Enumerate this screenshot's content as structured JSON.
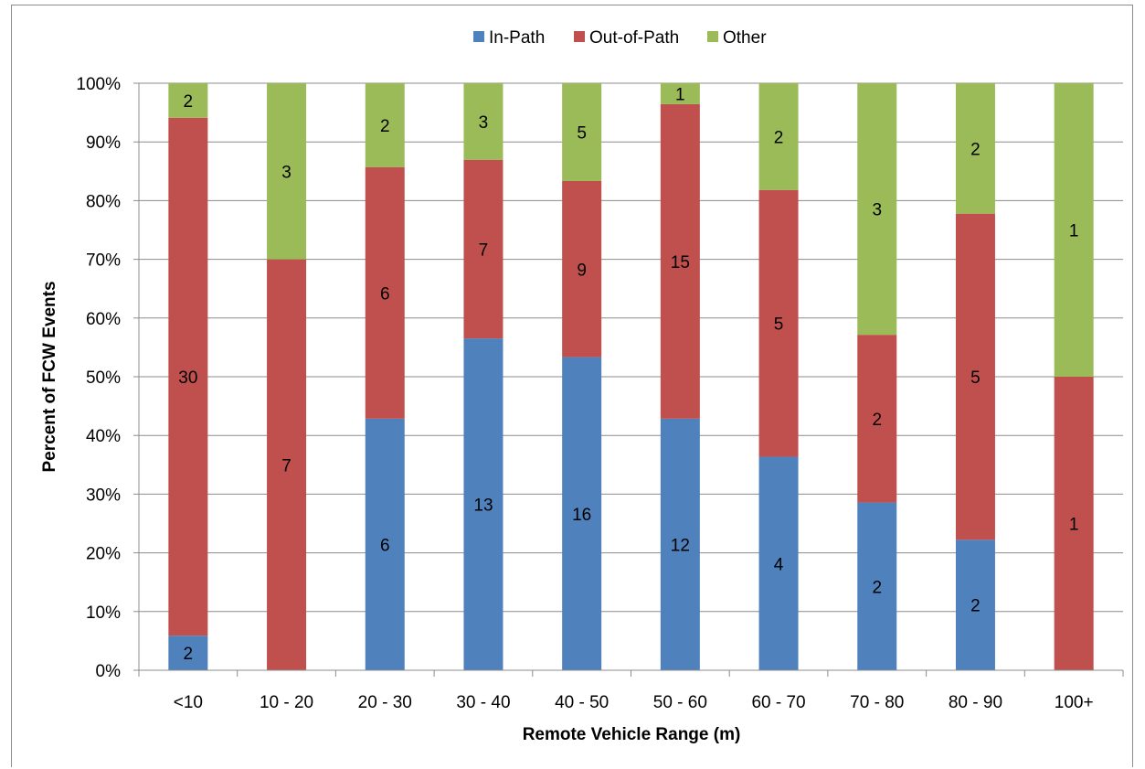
{
  "chart_data": {
    "type": "bar",
    "stacked": "percent",
    "title": "",
    "xlabel": "Remote Vehicle Range (m)",
    "ylabel": "Percent of FCW Events",
    "ylim": [
      0,
      100
    ],
    "yticks": [
      "0%",
      "10%",
      "20%",
      "30%",
      "40%",
      "50%",
      "60%",
      "70%",
      "80%",
      "90%",
      "100%"
    ],
    "grid": true,
    "legend_position": "top-center",
    "categories": [
      "<10",
      "10 - 20",
      "20 - 30",
      "30 - 40",
      "40 - 50",
      "50 - 60",
      "60 - 70",
      "70 - 80",
      "80 - 90",
      "100+"
    ],
    "series": [
      {
        "name": "In-Path",
        "color": "#4f81bd",
        "values": [
          2,
          0,
          6,
          13,
          16,
          12,
          4,
          2,
          2,
          0
        ]
      },
      {
        "name": "Out-of-Path",
        "color": "#c0504d",
        "values": [
          30,
          7,
          6,
          7,
          9,
          15,
          5,
          2,
          5,
          1
        ]
      },
      {
        "name": "Other",
        "color": "#9bbb59",
        "values": [
          2,
          3,
          2,
          3,
          5,
          1,
          2,
          3,
          2,
          1
        ]
      }
    ]
  }
}
